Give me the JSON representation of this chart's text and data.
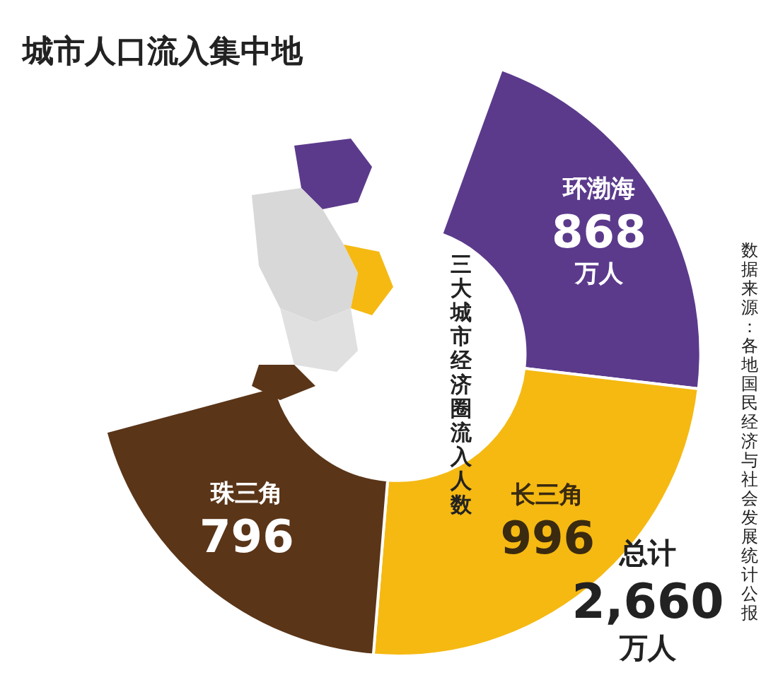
{
  "chart_data": {
    "type": "donut",
    "title": "城市人口流入集中地",
    "subtitle": "三大城市经济圈流入人数",
    "categories": [
      "环渤海",
      "长三角",
      "珠三角"
    ],
    "values": [
      868,
      996,
      796
    ],
    "colors": [
      "#5b3a8c",
      "#f5b912",
      "#5a3518"
    ],
    "value_labels": [
      "868 万人",
      "996",
      "796"
    ],
    "annotations": [
      "总计 2,660 万人",
      "数据来源：各地国民经济与社会发展统计公报"
    ],
    "legend": false
  }
}
